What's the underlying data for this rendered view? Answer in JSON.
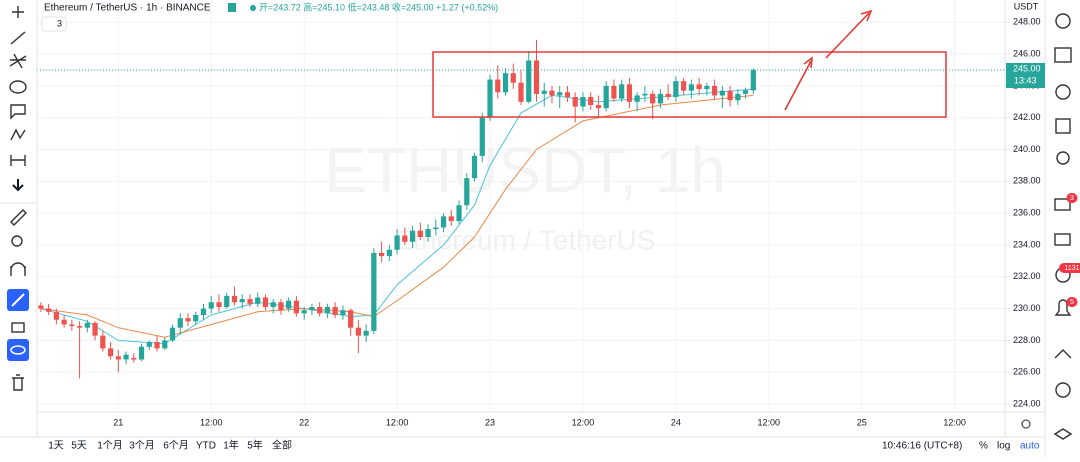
{
  "header": {
    "title": "Ethereum / TetherUS · 1h · BINANCE",
    "ohlc": "开=243.72 高=245.10 低=243.48 收=245.00 +1.27 (+0.52%)",
    "indicators": "3",
    "currency": "USDT",
    "price_label": "245.00",
    "countdown": "13:43"
  },
  "watermark": {
    "symbol": "ETHUSDT, 1h",
    "name": "Ethereum / TetherUS"
  },
  "chart_data": {
    "type": "candlestick",
    "up_color": "#26a69a",
    "down_color": "#ef5350",
    "grid": true,
    "x": [
      -10,
      -9,
      -8,
      -7,
      -6,
      -5,
      -4,
      -3,
      -2,
      -1,
      0,
      1,
      2,
      3,
      4,
      5,
      6,
      7,
      8,
      9,
      10,
      11,
      12,
      13,
      14,
      15,
      16,
      17,
      18,
      19,
      20,
      21,
      22,
      23,
      24,
      25,
      26,
      27,
      28,
      29,
      30,
      31,
      32,
      33,
      34,
      35,
      36,
      37,
      38,
      39,
      40,
      41,
      42,
      43,
      44,
      45,
      46,
      47,
      48,
      49,
      50,
      51,
      52,
      53,
      54,
      55,
      56,
      57,
      58,
      59,
      60,
      61,
      62,
      63,
      64,
      65,
      66,
      67,
      68,
      69,
      70,
      71,
      72,
      73,
      74,
      75,
      76,
      77,
      78,
      79,
      80,
      81,
      82
    ],
    "open": [
      230.2,
      230.0,
      229.8,
      229.3,
      229.0,
      228.9,
      228.8,
      229.1,
      228.3,
      227.5,
      227.0,
      226.8,
      226.9,
      226.8,
      227.6,
      227.9,
      227.5,
      228.0,
      228.8,
      229.4,
      229.2,
      229.6,
      230.0,
      230.4,
      230.1,
      230.8,
      230.4,
      230.6,
      230.3,
      230.7,
      230.1,
      230.4,
      230.0,
      230.5,
      229.7,
      229.9,
      230.1,
      229.7,
      230.1,
      229.6,
      229.9,
      228.8,
      228.3,
      228.6,
      233.5,
      233.3,
      233.7,
      234.6,
      234.2,
      234.9,
      234.5,
      235.0,
      235.1,
      235.8,
      235.5,
      236.5,
      238.2,
      239.6,
      242.0,
      244.4,
      243.6,
      244.8,
      244.2,
      243.0,
      245.6,
      243.5,
      243.7,
      243.4,
      243.6,
      243.3,
      242.7,
      243.3,
      242.8,
      242.6,
      244.0,
      243.2,
      244.1,
      243.0,
      243.4,
      243.5,
      242.9,
      243.5,
      243.3,
      244.3,
      243.7,
      244.1,
      243.8,
      244.0,
      243.4,
      243.7,
      243.1,
      243.5,
      243.72
    ],
    "high": [
      230.4,
      230.3,
      230.0,
      229.6,
      229.3,
      229.2,
      229.3,
      229.2,
      228.6,
      227.9,
      227.4,
      227.3,
      227.2,
      227.8,
      228.0,
      228.3,
      228.2,
      229.0,
      229.7,
      229.7,
      229.8,
      230.3,
      230.8,
      230.9,
      231.0,
      231.4,
      230.9,
      230.9,
      231.0,
      230.9,
      230.6,
      230.6,
      230.7,
      230.8,
      230.1,
      230.3,
      230.4,
      230.3,
      230.4,
      230.2,
      230.0,
      229.3,
      229.0,
      233.8,
      234.2,
      234.0,
      235.0,
      235.1,
      235.2,
      235.4,
      235.3,
      235.6,
      236.0,
      236.2,
      236.8,
      238.5,
      239.8,
      242.3,
      244.7,
      245.3,
      245.1,
      245.4,
      245.0,
      246.2,
      246.9,
      244.2,
      244.0,
      244.0,
      244.0,
      243.6,
      243.6,
      243.6,
      243.4,
      244.3,
      244.4,
      244.4,
      244.5,
      243.6,
      244.0,
      243.7,
      243.8,
      244.1,
      244.6,
      244.5,
      244.4,
      244.5,
      244.2,
      244.4,
      244.0,
      244.0,
      243.8,
      243.9,
      245.1
    ],
    "low": [
      229.8,
      229.6,
      229.0,
      228.8,
      228.6,
      225.6,
      228.5,
      228.0,
      227.3,
      226.8,
      226.0,
      226.5,
      226.6,
      226.7,
      227.4,
      227.3,
      227.4,
      227.9,
      228.4,
      228.9,
      229.0,
      229.3,
      229.7,
      229.8,
      230.0,
      230.2,
      230.0,
      230.1,
      230.1,
      229.9,
      229.7,
      229.6,
      229.8,
      229.5,
      229.3,
      229.6,
      229.5,
      229.4,
      229.4,
      229.3,
      228.3,
      227.2,
      227.9,
      228.4,
      232.9,
      233.0,
      233.4,
      234.0,
      233.8,
      234.3,
      234.2,
      234.6,
      234.8,
      235.2,
      235.3,
      236.2,
      238.0,
      239.2,
      241.8,
      243.2,
      243.4,
      243.8,
      242.8,
      242.9,
      243.0,
      242.7,
      242.9,
      242.6,
      243.0,
      241.7,
      242.4,
      242.5,
      242.0,
      242.4,
      243.0,
      243.0,
      242.6,
      242.4,
      243.0,
      241.9,
      242.6,
      243.1,
      243.0,
      243.4,
      243.2,
      243.4,
      243.4,
      243.1,
      242.6,
      242.7,
      242.8,
      243.2,
      243.48
    ],
    "close": [
      230.0,
      229.8,
      229.3,
      229.0,
      228.9,
      228.8,
      229.1,
      228.3,
      227.5,
      227.0,
      226.8,
      227.1,
      226.8,
      227.6,
      227.9,
      227.5,
      228.0,
      228.8,
      229.4,
      229.2,
      229.6,
      230.0,
      230.4,
      230.1,
      230.8,
      230.4,
      230.6,
      230.3,
      230.7,
      230.1,
      230.4,
      229.9,
      230.5,
      229.7,
      229.9,
      230.1,
      229.7,
      230.1,
      229.6,
      229.9,
      228.8,
      228.3,
      228.6,
      233.5,
      233.3,
      233.7,
      234.6,
      234.2,
      234.9,
      234.5,
      235.0,
      235.1,
      235.8,
      235.5,
      236.5,
      238.2,
      239.6,
      242.0,
      244.4,
      243.6,
      244.8,
      244.2,
      243.0,
      245.6,
      243.5,
      243.7,
      243.4,
      243.6,
      243.3,
      242.7,
      243.3,
      242.8,
      242.6,
      244.0,
      243.2,
      244.1,
      243.0,
      243.4,
      243.5,
      242.9,
      243.5,
      243.3,
      244.3,
      243.7,
      244.1,
      243.8,
      244.0,
      243.4,
      243.7,
      243.1,
      243.5,
      243.72,
      245.0
    ],
    "lines": [
      {
        "color": "#4fc3dc",
        "x": [
          -10,
          -4,
          0,
          6,
          12,
          18,
          24,
          30,
          33,
          36,
          42,
          46,
          48,
          52,
          56,
          62,
          70,
          82
        ],
        "values": [
          230.0,
          229.2,
          228.0,
          227.8,
          229.6,
          230.4,
          230.0,
          229.5,
          229.6,
          231.5,
          234.0,
          236.5,
          239.0,
          242.3,
          243.4,
          243.0,
          243.3,
          243.8
        ]
      },
      {
        "color": "#e8894a",
        "x": [
          -10,
          -4,
          0,
          6,
          12,
          18,
          24,
          30,
          33,
          36,
          42,
          46,
          50,
          54,
          60,
          70,
          82
        ],
        "values": [
          230.0,
          229.6,
          228.8,
          228.2,
          229.0,
          229.8,
          230.0,
          229.8,
          229.5,
          230.5,
          232.6,
          234.5,
          237.5,
          240.0,
          241.8,
          242.8,
          243.4
        ]
      }
    ],
    "xlim": [
      -10.5,
      114.5
    ],
    "xticks": [
      {
        "value": 0,
        "label": "21"
      },
      {
        "value": 12,
        "label": "12:00"
      },
      {
        "value": 24,
        "label": "22"
      },
      {
        "value": 36,
        "label": "12:00"
      },
      {
        "value": 48,
        "label": "23"
      },
      {
        "value": 60,
        "label": "12:00"
      },
      {
        "value": 72,
        "label": "24"
      },
      {
        "value": 84,
        "label": "12:00"
      },
      {
        "value": 96,
        "label": "25"
      },
      {
        "value": 108,
        "label": "12:00"
      }
    ],
    "ylim": [
      223.5,
      249.4
    ],
    "yticks": [
      {
        "value": 224,
        "label": "224.00"
      },
      {
        "value": 226,
        "label": "226.00"
      },
      {
        "value": 228,
        "label": "228.00"
      },
      {
        "value": 230,
        "label": "230.00"
      },
      {
        "value": 232,
        "label": "232.00"
      },
      {
        "value": 234,
        "label": "234.00"
      },
      {
        "value": 236,
        "label": "236.00"
      },
      {
        "value": 238,
        "label": "238.00"
      },
      {
        "value": 240,
        "label": "240.00"
      },
      {
        "value": 242,
        "label": "242.00"
      },
      {
        "value": 244,
        "label": "244.00"
      },
      {
        "value": 246,
        "label": "246.00"
      },
      {
        "value": 248,
        "label": "248.00"
      }
    ]
  },
  "sidebar": {
    "badges": [
      "3",
      "1131",
      "5"
    ]
  },
  "footer": {
    "ranges": [
      "1天",
      "5天",
      "1个月",
      "3个月",
      "6个月",
      "YTD",
      "1年",
      "5年",
      "全部"
    ],
    "clock": "10:46:16 (UTC+8)",
    "percent": "%",
    "log": "log",
    "auto": "auto"
  }
}
